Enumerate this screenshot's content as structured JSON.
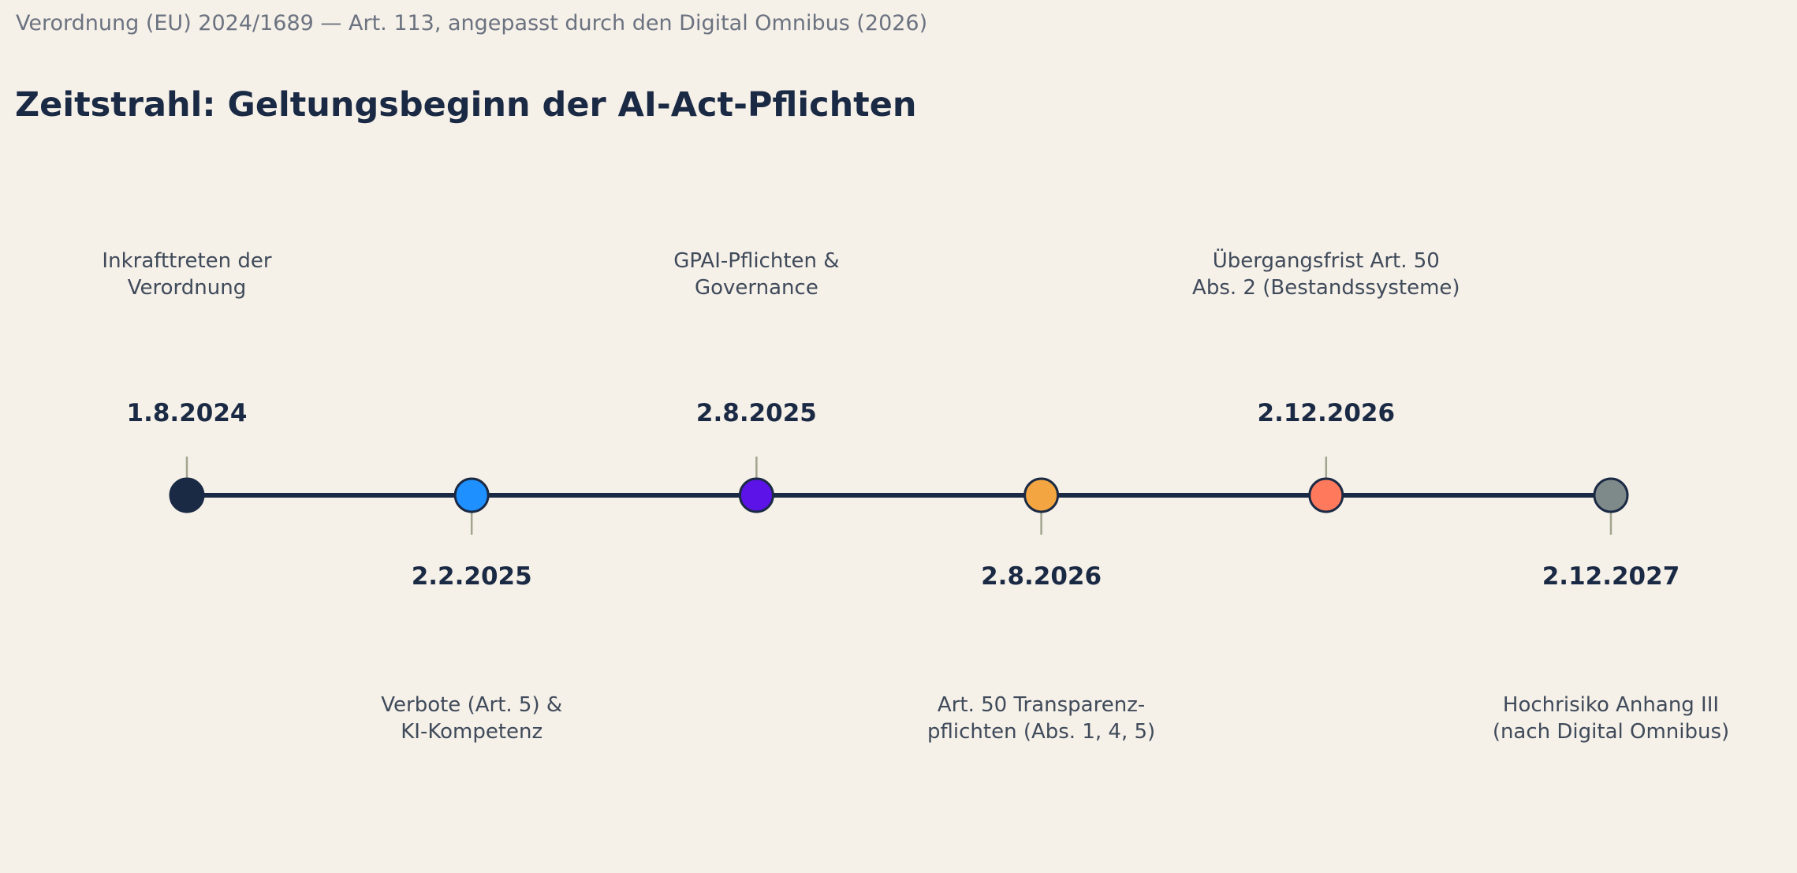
{
  "header": {
    "subtitle": "Verordnung (EU) 2024/1689 — Art. 113, angepasst durch den Digital Omnibus (2026)",
    "title": "Zeitstrahl: Geltungsbeginn der AI-Act-Pflichten"
  },
  "timeline": {
    "line_color": "#1b2a44",
    "tick_color": "#a3a58f",
    "milestones": [
      {
        "date": "1.8.2024",
        "description": [
          "Inkrafttreten der",
          "Verordnung"
        ],
        "color": "#1b2a44",
        "side": "above"
      },
      {
        "date": "2.2.2025",
        "description": [
          "Verbote (Art. 5) &",
          "KI-Kompetenz"
        ],
        "color": "#1e90ff",
        "side": "below"
      },
      {
        "date": "2.8.2025",
        "description": [
          "GPAI-Pflichten &",
          "Governance"
        ],
        "color": "#5b13e8",
        "side": "above"
      },
      {
        "date": "2.8.2026",
        "description": [
          "Art. 50 Transparenz-",
          "pflichten (Abs. 1, 4, 5)"
        ],
        "color": "#f2a541",
        "side": "below"
      },
      {
        "date": "2.12.2026",
        "description": [
          "Übergangsfrist Art. 50",
          "Abs. 2 (Bestandssysteme)"
        ],
        "color": "#ff7a5c",
        "side": "above"
      },
      {
        "date": "2.12.2027",
        "description": [
          "Hochrisiko Anhang III",
          "(nach Digital Omnibus)"
        ],
        "color": "#7e8a8a",
        "side": "below"
      }
    ]
  }
}
